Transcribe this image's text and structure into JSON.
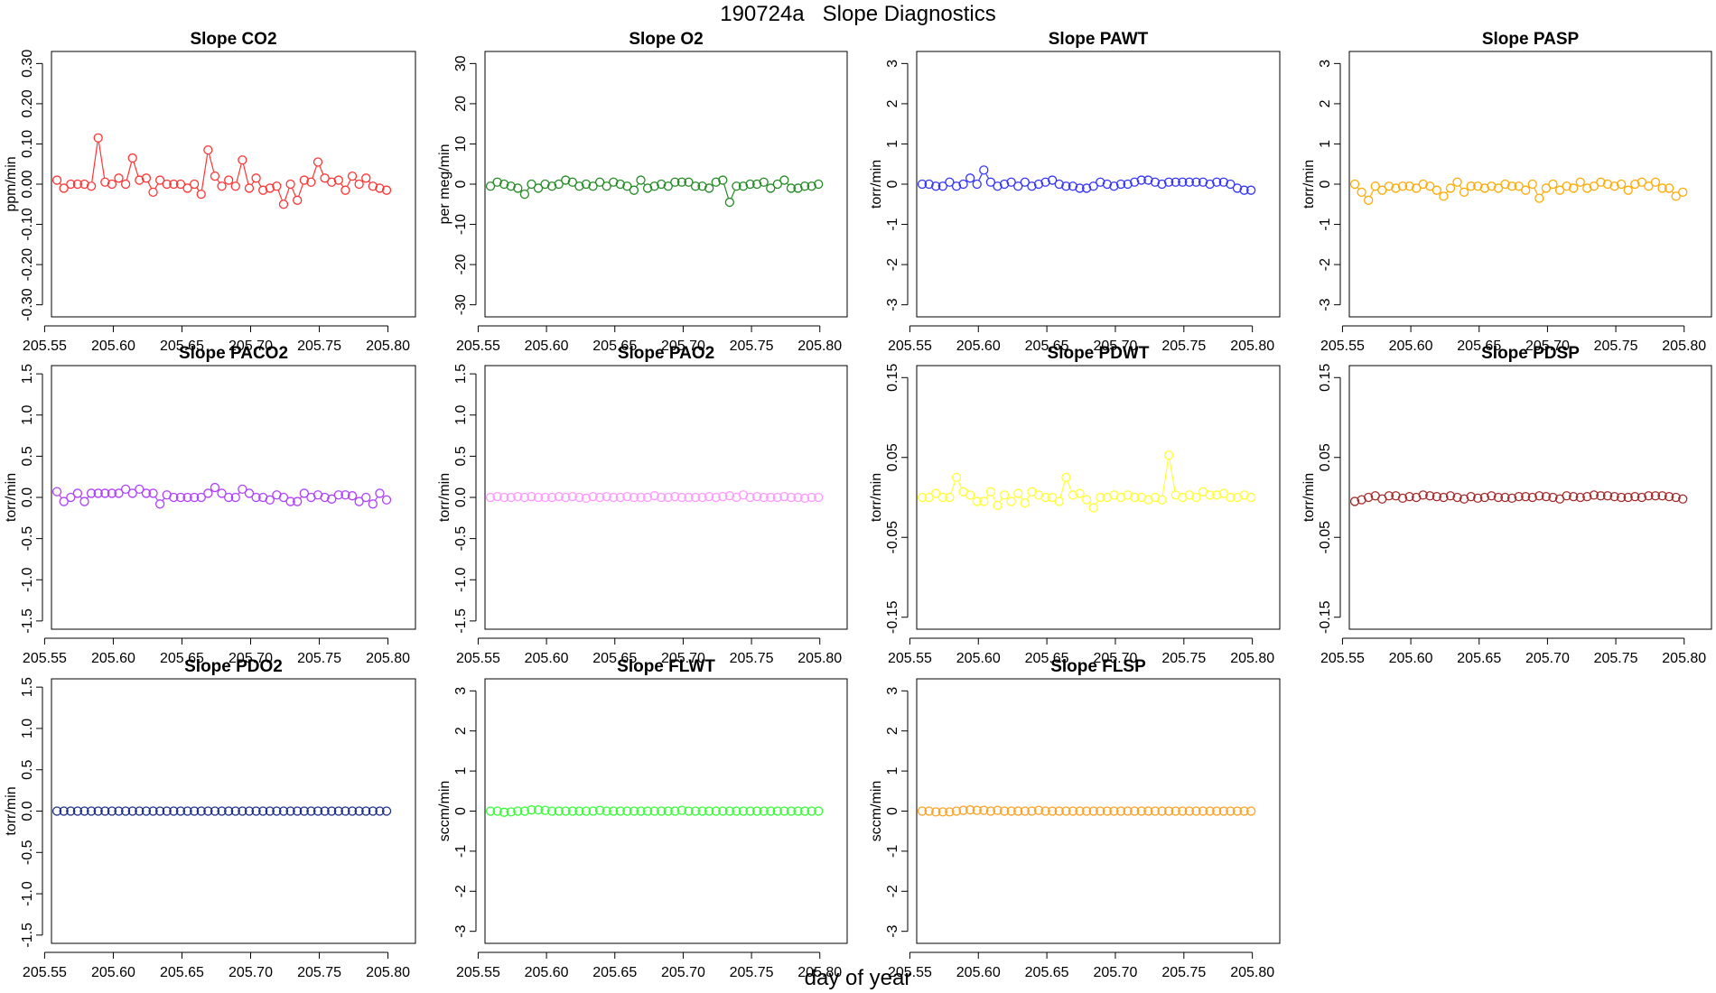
{
  "title": "190724a   Slope Diagnostics",
  "xlabel": "day of year",
  "chart_data": [
    {
      "type": "line",
      "title": "Slope CO2",
      "ylabel": "ppm/min",
      "color": "#ff3333",
      "ylim": [
        -0.33,
        0.33
      ],
      "yticks": [
        -0.3,
        -0.2,
        -0.1,
        0.0,
        0.1,
        0.2,
        0.3
      ],
      "xlim": [
        205.555,
        205.82
      ],
      "xticks": [
        205.55,
        205.6,
        205.65,
        205.7,
        205.75,
        205.8
      ],
      "x0": 205.559,
      "dx": 0.005,
      "y": [
        0.01,
        -0.01,
        0.0,
        0.0,
        0.0,
        -0.005,
        0.115,
        0.005,
        0.0,
        0.015,
        0.0,
        0.065,
        0.01,
        0.015,
        -0.02,
        0.01,
        0.0,
        0.0,
        0.0,
        -0.01,
        0.0,
        -0.025,
        0.085,
        0.02,
        -0.005,
        0.01,
        -0.005,
        0.06,
        -0.01,
        0.015,
        -0.015,
        -0.01,
        -0.005,
        -0.05,
        0.0,
        -0.04,
        0.01,
        0.005,
        0.055,
        0.015,
        0.005,
        0.01,
        -0.015,
        0.02,
        0.0,
        0.015,
        -0.005,
        -0.01,
        -0.015
      ]
    },
    {
      "type": "line",
      "title": "Slope O2",
      "ylabel": "per meg/min",
      "color": "#228b22",
      "ylim": [
        -33,
        33
      ],
      "yticks": [
        -30,
        -20,
        -10,
        0,
        10,
        20,
        30
      ],
      "xlim": [
        205.555,
        205.82
      ],
      "xticks": [
        205.55,
        205.6,
        205.65,
        205.7,
        205.75,
        205.8
      ],
      "x0": 205.559,
      "dx": 0.005,
      "y": [
        -0.5,
        0.5,
        0.0,
        -0.5,
        -1.0,
        -2.5,
        0.0,
        -1.0,
        0.0,
        -0.5,
        0.0,
        1.0,
        0.5,
        -0.5,
        0.0,
        -0.5,
        0.5,
        -0.5,
        0.5,
        0.0,
        -0.5,
        -1.5,
        1.0,
        -1.0,
        -0.5,
        0.0,
        -0.5,
        0.5,
        0.5,
        0.5,
        -0.5,
        -0.5,
        -1.0,
        0.5,
        1.0,
        -4.5,
        -0.5,
        -0.5,
        0.0,
        0.0,
        0.5,
        -1.0,
        0.0,
        1.0,
        -1.0,
        -1.0,
        -0.5,
        -0.5,
        0.0
      ]
    },
    {
      "type": "line",
      "title": "Slope PAWT",
      "ylabel": "torr/min",
      "color": "#3333ff",
      "ylim": [
        -3.3,
        3.3
      ],
      "yticks": [
        -3,
        -2,
        -1,
        0,
        1,
        2,
        3
      ],
      "xlim": [
        205.555,
        205.82
      ],
      "xticks": [
        205.55,
        205.6,
        205.65,
        205.7,
        205.75,
        205.8
      ],
      "x0": 205.559,
      "dx": 0.005,
      "y": [
        0.0,
        0.0,
        -0.05,
        -0.05,
        0.05,
        -0.05,
        0.0,
        0.15,
        0.0,
        0.35,
        0.05,
        -0.05,
        0.0,
        0.05,
        -0.05,
        0.05,
        -0.05,
        0.0,
        0.05,
        0.1,
        0.0,
        -0.05,
        -0.05,
        -0.1,
        -0.1,
        -0.05,
        0.05,
        0.0,
        -0.05,
        0.0,
        0.0,
        0.05,
        0.1,
        0.1,
        0.05,
        0.0,
        0.05,
        0.05,
        0.05,
        0.05,
        0.05,
        0.05,
        0.0,
        0.05,
        0.05,
        0.0,
        -0.1,
        -0.15,
        -0.15
      ]
    },
    {
      "type": "line",
      "title": "Slope PASP",
      "ylabel": "torr/min",
      "color": "#ffaa00",
      "ylim": [
        -3.3,
        3.3
      ],
      "yticks": [
        -3,
        -2,
        -1,
        0,
        1,
        2,
        3
      ],
      "xlim": [
        205.555,
        205.82
      ],
      "xticks": [
        205.55,
        205.6,
        205.65,
        205.7,
        205.75,
        205.8
      ],
      "x0": 205.559,
      "dx": 0.005,
      "y": [
        0.0,
        -0.2,
        -0.4,
        -0.05,
        -0.15,
        -0.05,
        -0.1,
        -0.05,
        -0.05,
        -0.1,
        0.0,
        -0.05,
        -0.15,
        -0.3,
        -0.1,
        0.05,
        -0.2,
        -0.05,
        -0.05,
        -0.1,
        -0.05,
        -0.1,
        0.0,
        -0.05,
        -0.05,
        -0.15,
        0.0,
        -0.35,
        -0.1,
        0.0,
        -0.15,
        -0.05,
        -0.1,
        0.05,
        -0.1,
        -0.05,
        0.05,
        0.0,
        -0.05,
        0.0,
        -0.15,
        0.0,
        0.05,
        -0.05,
        0.05,
        -0.1,
        -0.1,
        -0.3,
        -0.2
      ]
    },
    {
      "type": "line",
      "title": "Slope PACO2",
      "ylabel": "torr/min",
      "color": "#b040ff",
      "ylim": [
        -1.6,
        1.6
      ],
      "yticks": [
        -1.5,
        -1.0,
        -0.5,
        0.0,
        0.5,
        1.0,
        1.5
      ],
      "xlim": [
        205.555,
        205.82
      ],
      "xticks": [
        205.55,
        205.6,
        205.65,
        205.7,
        205.75,
        205.8
      ],
      "x0": 205.559,
      "dx": 0.005,
      "y": [
        0.07,
        -0.05,
        0.0,
        0.05,
        -0.05,
        0.05,
        0.05,
        0.05,
        0.05,
        0.05,
        0.1,
        0.05,
        0.1,
        0.05,
        0.05,
        -0.08,
        0.03,
        0.0,
        0.0,
        0.0,
        0.0,
        0.0,
        0.05,
        0.12,
        0.05,
        0.0,
        0.0,
        0.1,
        0.05,
        0.0,
        0.0,
        -0.03,
        0.03,
        0.0,
        -0.05,
        -0.05,
        0.05,
        0.0,
        0.03,
        0.0,
        -0.02,
        0.03,
        0.03,
        0.02,
        -0.05,
        0.0,
        -0.08,
        0.05,
        -0.03
      ]
    },
    {
      "type": "line",
      "title": "Slope PAO2",
      "ylabel": "torr/min",
      "color": "#ff99ff",
      "ylim": [
        -1.6,
        1.6
      ],
      "yticks": [
        -1.5,
        -1.0,
        -0.5,
        0.0,
        0.5,
        1.0,
        1.5
      ],
      "xlim": [
        205.555,
        205.82
      ],
      "xticks": [
        205.55,
        205.6,
        205.65,
        205.7,
        205.75,
        205.8
      ],
      "x0": 205.559,
      "dx": 0.005,
      "y": [
        0.0,
        0.01,
        0.0,
        0.0,
        0.01,
        0.0,
        0.01,
        0.0,
        0.0,
        0.0,
        0.01,
        0.0,
        0.01,
        0.0,
        -0.01,
        0.01,
        0.0,
        0.01,
        0.0,
        0.0,
        0.01,
        0.0,
        0.0,
        0.0,
        0.02,
        0.0,
        0.0,
        0.01,
        0.0,
        0.0,
        0.0,
        0.0,
        0.01,
        0.0,
        0.01,
        0.02,
        0.0,
        0.03,
        0.0,
        0.01,
        0.0,
        0.0,
        0.0,
        0.01,
        0.0,
        0.0,
        -0.01,
        0.0,
        0.0
      ]
    },
    {
      "type": "line",
      "title": "Slope PDWT",
      "ylabel": "torr/min",
      "color": "#ffff33",
      "ylim": [
        -0.165,
        0.165
      ],
      "yticks": [
        -0.15,
        -0.05,
        0.05,
        0.15
      ],
      "xlim": [
        205.555,
        205.82
      ],
      "xticks": [
        205.55,
        205.6,
        205.65,
        205.7,
        205.75,
        205.8
      ],
      "x0": 205.559,
      "dx": 0.005,
      "y": [
        0.0,
        0.0,
        0.005,
        0.0,
        0.0,
        0.025,
        0.007,
        0.003,
        -0.005,
        -0.005,
        0.007,
        -0.01,
        0.003,
        -0.005,
        0.005,
        -0.007,
        0.007,
        0.003,
        0.0,
        0.0,
        -0.005,
        0.025,
        0.003,
        0.005,
        -0.003,
        -0.013,
        0.0,
        0.0,
        0.003,
        0.0,
        0.003,
        0.0,
        0.0,
        -0.003,
        0.0,
        -0.003,
        0.053,
        0.003,
        0.0,
        0.003,
        0.0,
        0.007,
        0.003,
        0.003,
        0.005,
        0.0,
        0.0,
        0.003,
        0.0
      ]
    },
    {
      "type": "line",
      "title": "Slope PDSP",
      "ylabel": "torr/min",
      "color": "#a52a2a",
      "ylim": [
        -0.165,
        0.165
      ],
      "yticks": [
        -0.15,
        -0.05,
        0.05,
        0.15
      ],
      "xlim": [
        205.555,
        205.82
      ],
      "xticks": [
        205.55,
        205.6,
        205.65,
        205.7,
        205.75,
        205.8
      ],
      "x0": 205.559,
      "dx": 0.005,
      "y": [
        -0.005,
        -0.003,
        0.0,
        0.002,
        -0.002,
        0.002,
        0.002,
        -0.001,
        0.001,
        0.0,
        0.003,
        0.002,
        0.001,
        0.0,
        0.002,
        0.0,
        -0.002,
        0.001,
        -0.001,
        0.0,
        0.002,
        0.0,
        0.0,
        -0.001,
        0.001,
        0.001,
        0.0,
        0.002,
        0.001,
        0.0,
        -0.002,
        0.002,
        0.001,
        0.0,
        0.001,
        0.003,
        0.002,
        0.002,
        0.001,
        0.0,
        0.0,
        0.001,
        0.0,
        0.002,
        0.002,
        0.002,
        0.001,
        0.0,
        -0.002
      ]
    },
    {
      "type": "line",
      "title": "Slope PDO2",
      "ylabel": "torr/min",
      "color": "#1c2f8a",
      "ylim": [
        -1.6,
        1.6
      ],
      "yticks": [
        -1.5,
        -1.0,
        -0.5,
        0.0,
        0.5,
        1.0,
        1.5
      ],
      "xlim": [
        205.555,
        205.82
      ],
      "xticks": [
        205.55,
        205.6,
        205.65,
        205.7,
        205.75,
        205.8
      ],
      "x0": 205.559,
      "dx": 0.005,
      "y": [
        0.0,
        0.0,
        0.0,
        0.0,
        0.0,
        0.0,
        0.0,
        0.0,
        0.0,
        0.0,
        0.0,
        0.0,
        0.0,
        0.0,
        0.0,
        0.0,
        0.0,
        0.0,
        0.0,
        0.0,
        0.0,
        0.0,
        0.0,
        0.0,
        0.0,
        0.0,
        0.0,
        0.0,
        0.0,
        0.0,
        0.0,
        0.0,
        0.0,
        0.0,
        0.0,
        0.0,
        0.0,
        0.0,
        0.0,
        0.0,
        0.0,
        0.0,
        0.0,
        0.0,
        0.0,
        0.0,
        0.0,
        0.0,
        0.0
      ]
    },
    {
      "type": "line",
      "title": "Slope FLWT",
      "ylabel": "sccm/min",
      "color": "#33ff33",
      "ylim": [
        -3.3,
        3.3
      ],
      "yticks": [
        -3,
        -2,
        -1,
        0,
        1,
        2,
        3
      ],
      "xlim": [
        205.555,
        205.82
      ],
      "xticks": [
        205.55,
        205.6,
        205.65,
        205.7,
        205.75,
        205.8
      ],
      "x0": 205.559,
      "dx": 0.005,
      "y": [
        0.0,
        0.0,
        -0.03,
        -0.02,
        0.0,
        0.0,
        0.03,
        0.03,
        0.02,
        0.0,
        0.0,
        0.0,
        0.0,
        0.0,
        0.0,
        0.0,
        0.02,
        0.0,
        0.0,
        0.0,
        0.0,
        0.0,
        0.0,
        0.0,
        0.0,
        0.0,
        0.0,
        0.0,
        0.02,
        0.0,
        0.0,
        0.0,
        0.0,
        0.0,
        0.0,
        0.0,
        0.0,
        0.0,
        0.0,
        0.0,
        0.0,
        0.0,
        0.0,
        0.0,
        0.0,
        0.0,
        0.0,
        0.0,
        0.0
      ]
    },
    {
      "type": "line",
      "title": "Slope FLSP",
      "ylabel": "sccm/min",
      "color": "#ffa020",
      "ylim": [
        -3.3,
        3.3
      ],
      "yticks": [
        -3,
        -2,
        -1,
        0,
        1,
        2,
        3
      ],
      "xlim": [
        205.555,
        205.82
      ],
      "xticks": [
        205.55,
        205.6,
        205.65,
        205.7,
        205.75,
        205.8
      ],
      "x0": 205.559,
      "dx": 0.005,
      "y": [
        0.0,
        0.0,
        -0.02,
        -0.02,
        -0.02,
        0.0,
        0.02,
        0.03,
        0.02,
        0.02,
        0.0,
        0.02,
        0.0,
        0.0,
        0.0,
        0.0,
        0.0,
        0.02,
        0.0,
        0.0,
        0.0,
        0.0,
        0.0,
        0.0,
        0.0,
        0.0,
        0.0,
        0.0,
        0.0,
        0.0,
        0.0,
        0.0,
        0.0,
        0.0,
        0.0,
        0.0,
        0.0,
        0.0,
        0.0,
        0.0,
        0.0,
        0.0,
        0.0,
        0.0,
        0.0,
        0.0,
        0.0,
        0.0,
        0.0
      ]
    }
  ]
}
